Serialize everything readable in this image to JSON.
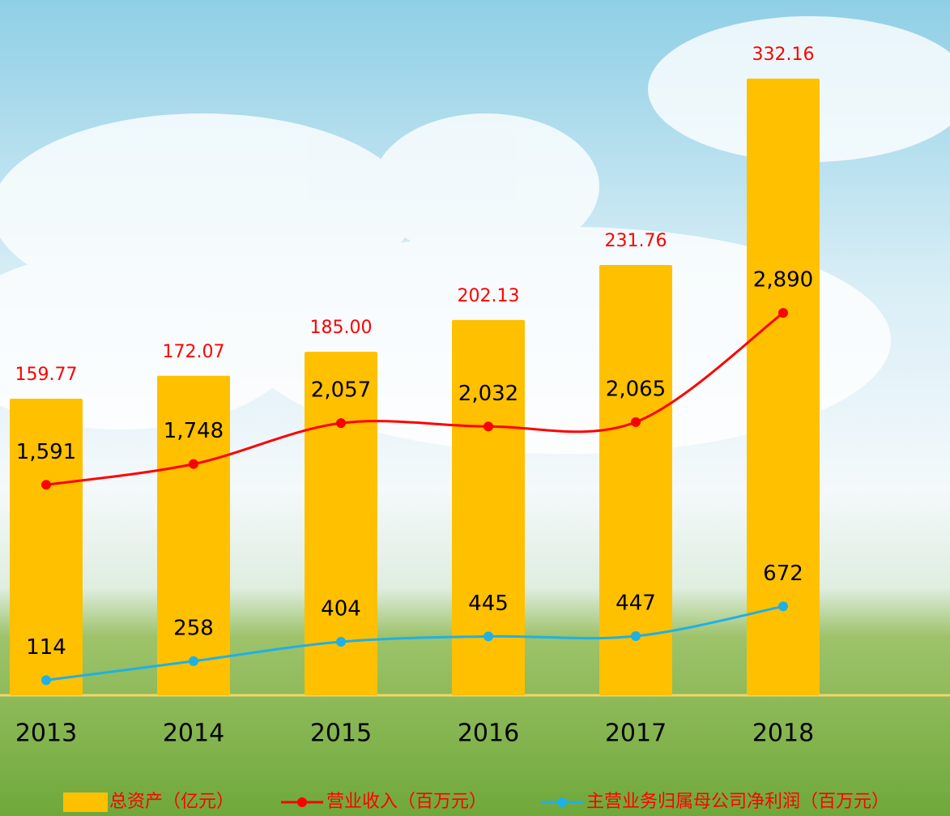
{
  "chart_data": {
    "type": "bar",
    "categories": [
      "2013",
      "2014",
      "2015",
      "2016",
      "2017",
      "2018"
    ],
    "series": [
      {
        "name": "总资产（亿元）",
        "type": "bar",
        "color": "#ffc000",
        "label_color": "#ff0000",
        "values": [
          159.77,
          172.07,
          185.0,
          202.13,
          231.76,
          332.16
        ],
        "value_labels": [
          "159.77",
          "172.07",
          "185.00",
          "202.13",
          "231.76",
          "332.16"
        ]
      },
      {
        "name": "营业收入（百万元）",
        "type": "line",
        "axis": "y2",
        "color": "#ff0000",
        "label_color": "#000000",
        "values": [
          1591,
          1748,
          2057,
          2032,
          2065,
          2890
        ],
        "value_labels": [
          "1,591",
          "1,748",
          "2,057",
          "2,032",
          "2,065",
          "2,890"
        ]
      },
      {
        "name": "主营业务归属母公司净利润（百万元）",
        "type": "line",
        "axis": "y2",
        "color": "#1fb0e6",
        "label_color": "#000000",
        "values": [
          114,
          258,
          404,
          445,
          447,
          672
        ]
      }
    ],
    "legend": "bottom"
  }
}
